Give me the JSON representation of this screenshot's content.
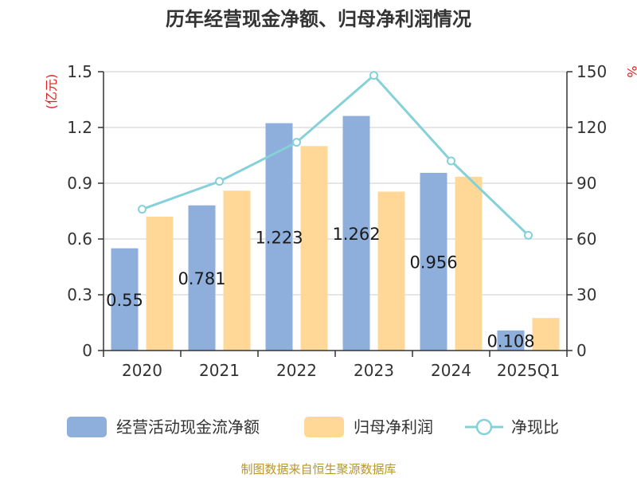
{
  "chart_data": {
    "type": "bar",
    "title": "历年经营现金净额、归母净利润情况",
    "categories": [
      "2020",
      "2021",
      "2022",
      "2023",
      "2024",
      "2025Q1"
    ],
    "y_left": {
      "unit": "(亿元)",
      "ylim": [
        0,
        1.5
      ],
      "ticks": [
        "0",
        "0.3",
        "0.6",
        "0.9",
        "1.2",
        "1.5"
      ]
    },
    "y_right": {
      "unit": "%",
      "ylim": [
        0,
        150
      ],
      "ticks": [
        "0",
        "30",
        "60",
        "90",
        "120",
        "150"
      ]
    },
    "series": [
      {
        "name": "经营活动现金流净额",
        "type": "bar",
        "axis": "left",
        "color": "#8eaedb",
        "values": [
          0.55,
          0.781,
          1.223,
          1.262,
          0.956,
          0.108
        ],
        "labels": [
          "0.55",
          "0.781",
          "1.223",
          "1.262",
          "0.956",
          "0.108"
        ]
      },
      {
        "name": "归母净利润",
        "type": "bar",
        "axis": "left",
        "color": "#ffd898",
        "values": [
          0.72,
          0.86,
          1.1,
          0.855,
          0.935,
          0.175
        ]
      },
      {
        "name": "净现比",
        "type": "line",
        "axis": "right",
        "color": "#85d1d9",
        "values": [
          76,
          91,
          112,
          148,
          102,
          62
        ]
      }
    ],
    "grid": true,
    "legend": "bottom"
  },
  "source": "制图数据来自恒生聚源数据库"
}
